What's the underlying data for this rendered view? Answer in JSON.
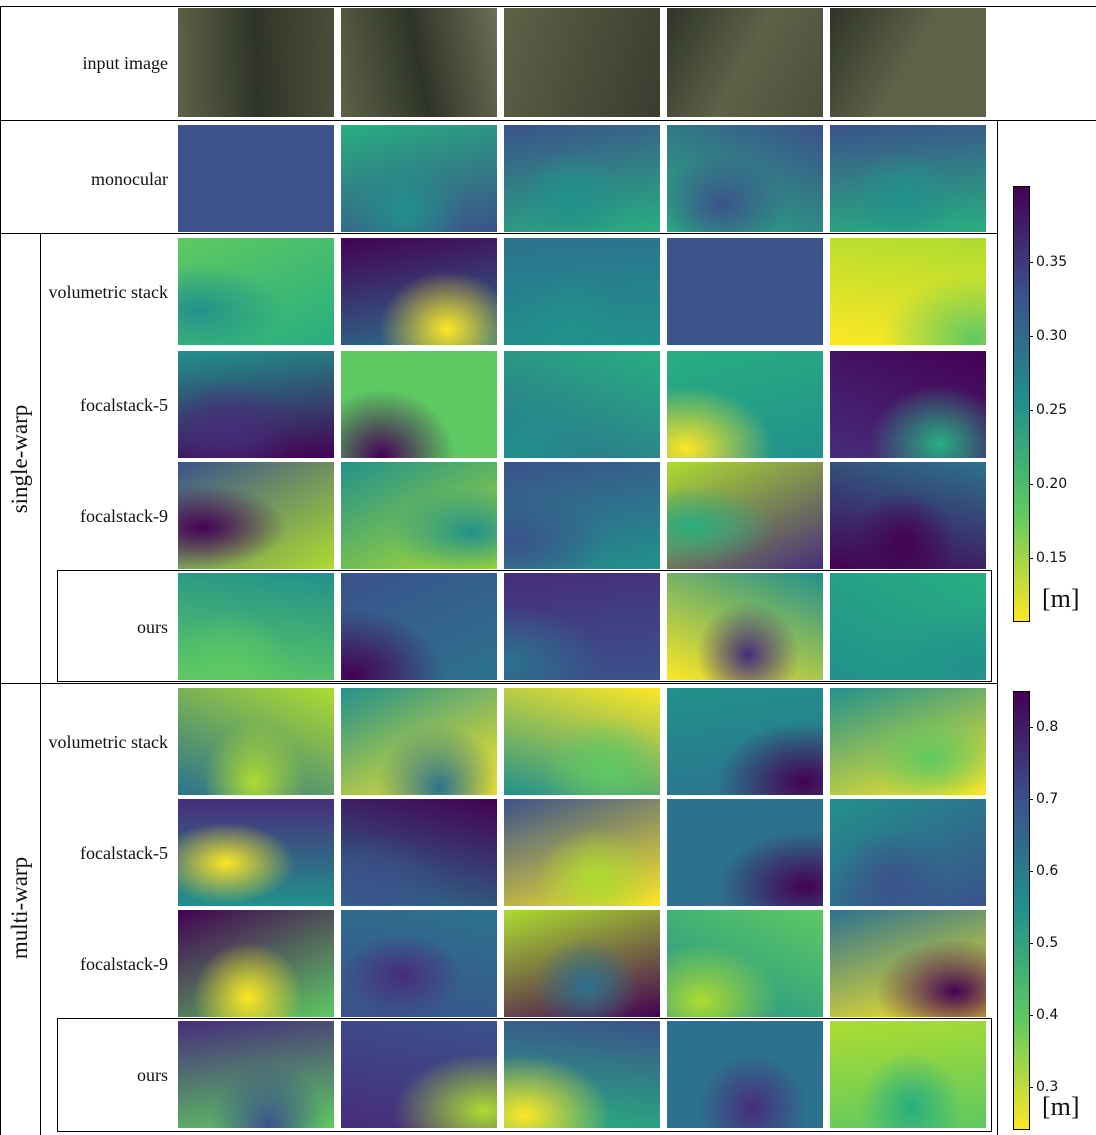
{
  "rows": [
    {
      "label": "input image"
    },
    {
      "label": "monocular"
    }
  ],
  "groups": [
    {
      "label": "single-warp",
      "rows": [
        "volumetric stack",
        "focalstack-5",
        "focalstack-9",
        "ours"
      ]
    },
    {
      "label": "multi-warp",
      "rows": [
        "volumetric stack",
        "focalstack-5",
        "focalstack-9",
        "ours"
      ]
    }
  ],
  "colorbars": [
    {
      "lim": [
        0.108,
        0.401
      ],
      "ticks": [
        {
          "value": 0.15,
          "label": "0.15"
        },
        {
          "value": 0.2,
          "label": "0.20"
        },
        {
          "value": 0.25,
          "label": "0.25"
        },
        {
          "value": 0.3,
          "label": "0.30"
        },
        {
          "value": 0.35,
          "label": "0.35"
        }
      ],
      "unit": "[m]"
    },
    {
      "lim": [
        0.243,
        0.85
      ],
      "ticks": [
        0.3,
        0.4,
        0.5,
        0.6,
        0.7,
        0.8
      ],
      "unit": "[m]"
    }
  ]
}
